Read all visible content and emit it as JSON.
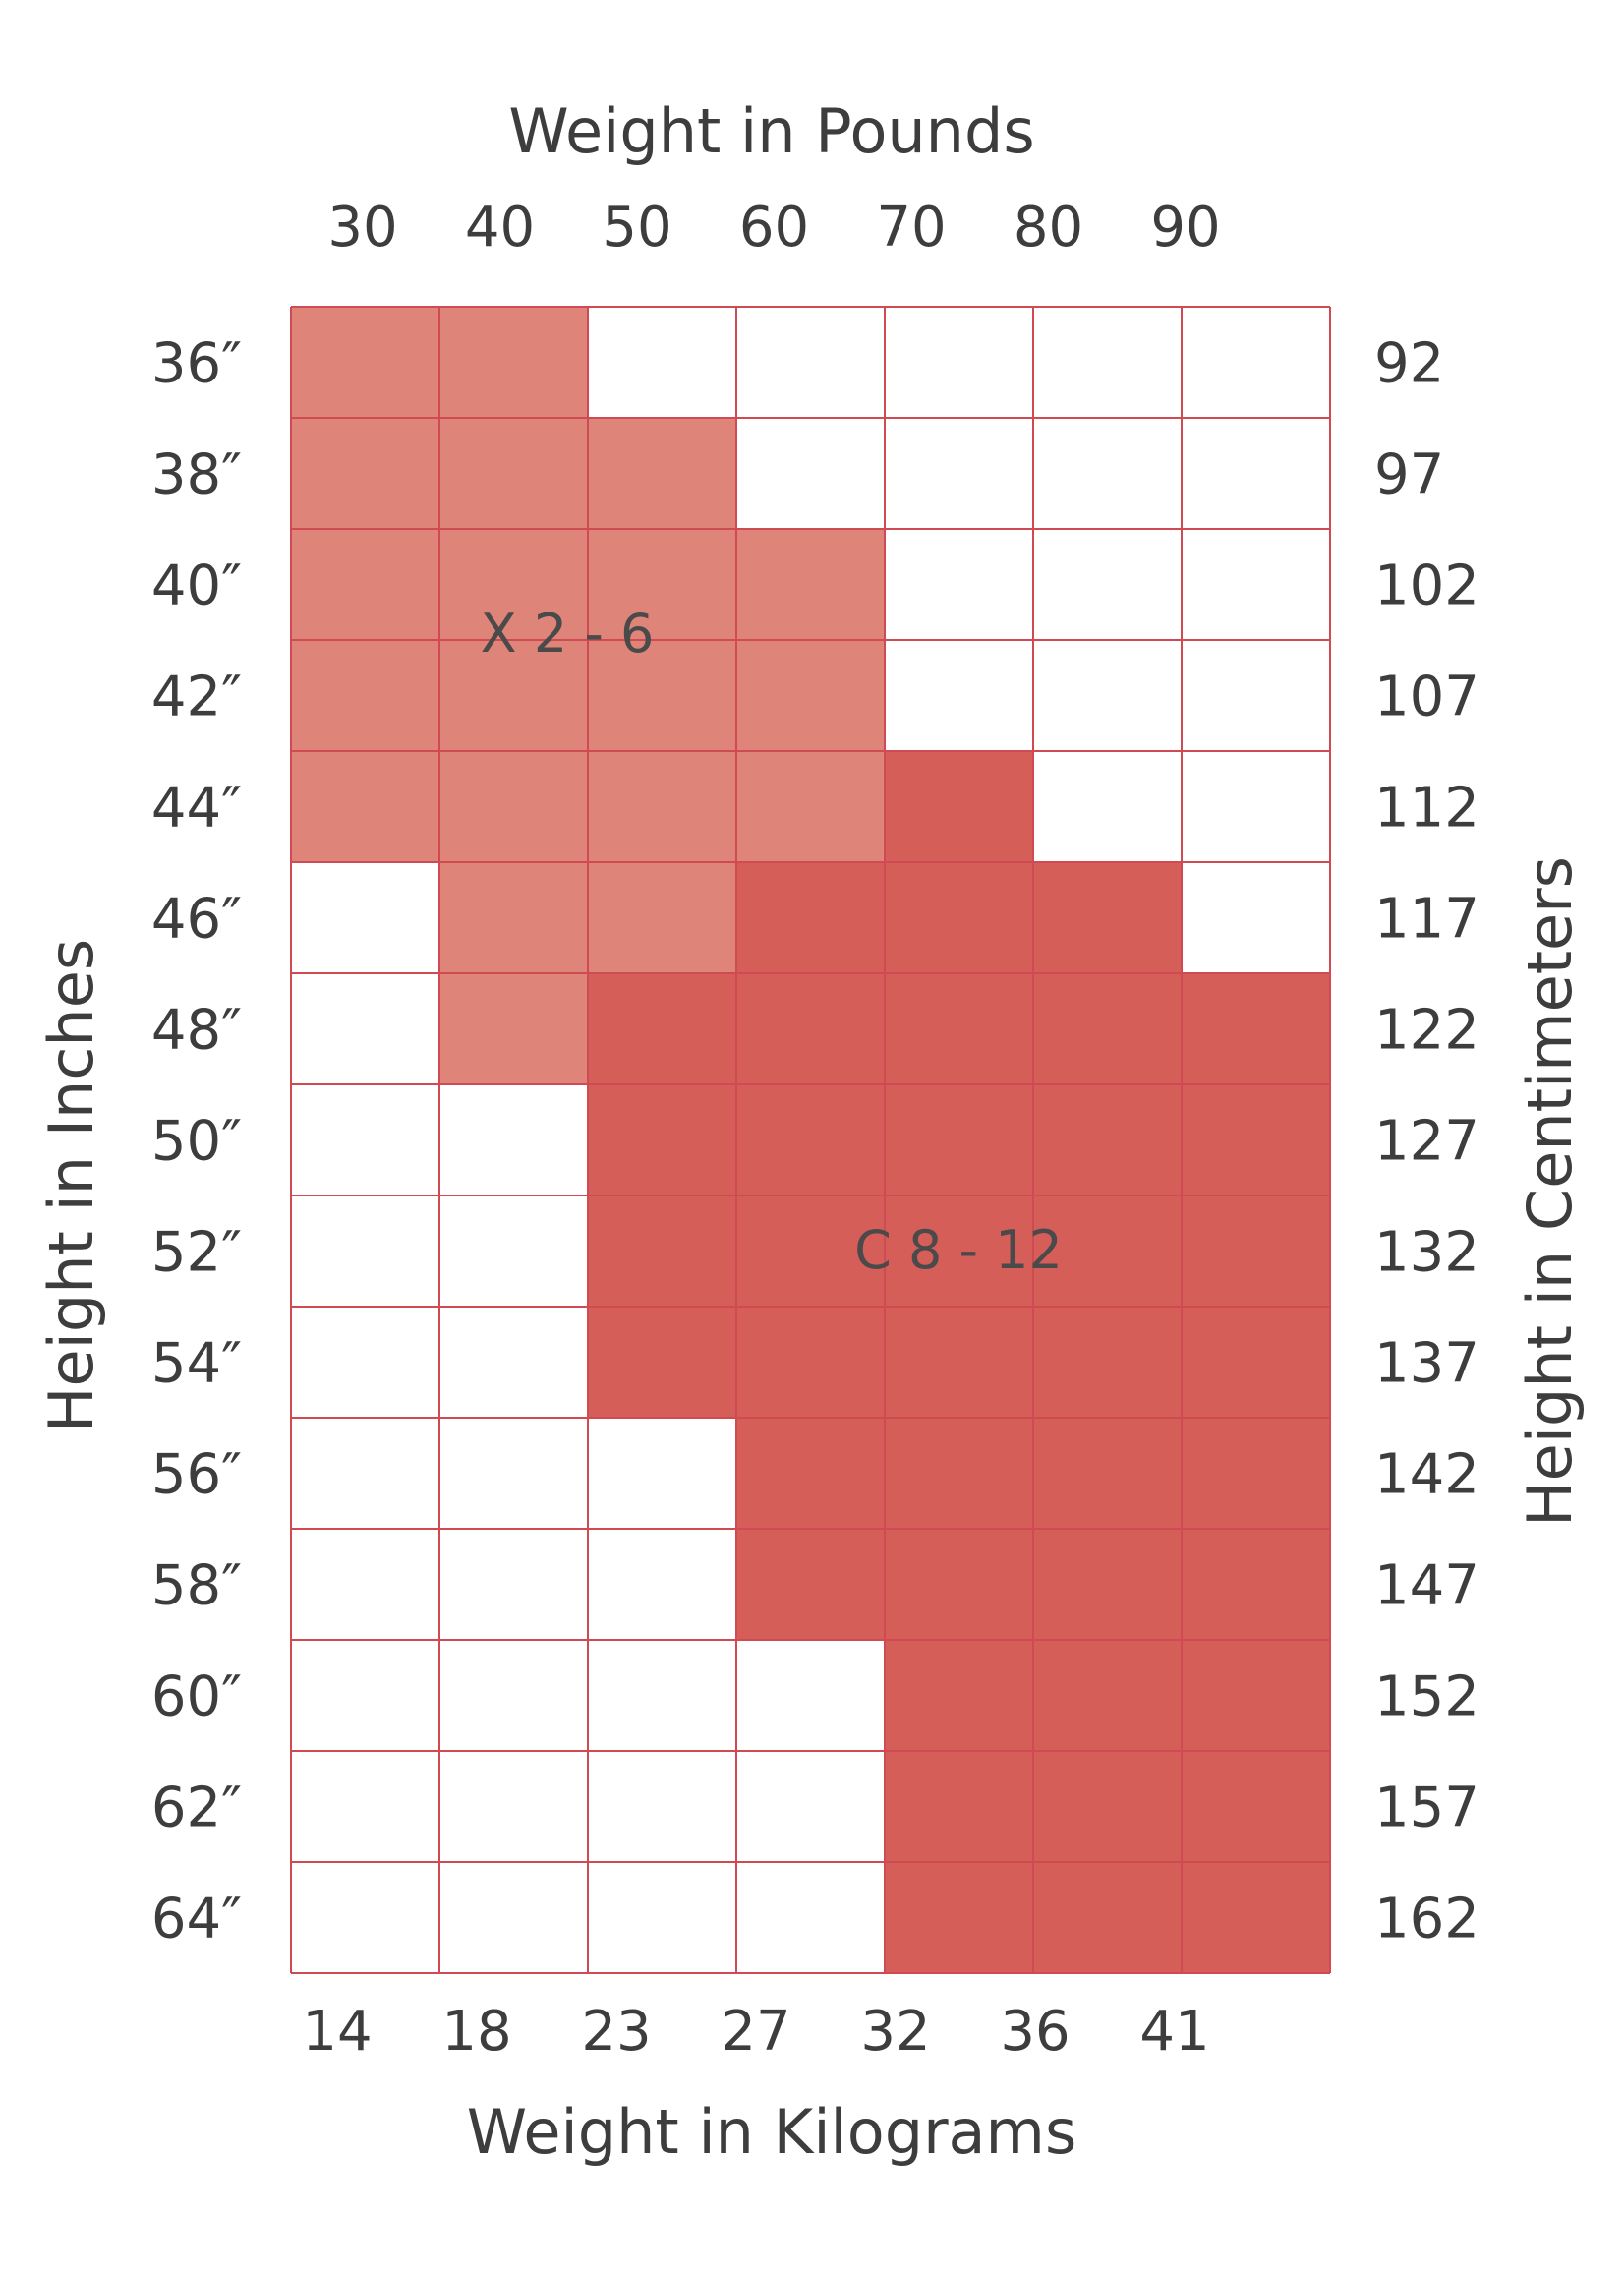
{
  "chart_data": {
    "type": "heatmap",
    "title": "",
    "top_axis_title": "Weight in Pounds",
    "bottom_axis_title": "Weight in Kilograms",
    "left_axis_title": "Height in Inches",
    "right_axis_title": "Height in Centimeters",
    "pounds_ticks": [
      "30",
      "40",
      "50",
      "60",
      "70",
      "80",
      "90"
    ],
    "kilogram_ticks": [
      "14",
      "18",
      "23",
      "27",
      "32",
      "36",
      "41"
    ],
    "inch_ticks": [
      "36″",
      "38″",
      "40″",
      "42″",
      "44″",
      "46″",
      "48″",
      "50″",
      "52″",
      "54″",
      "56″",
      "58″",
      "60″",
      "62″",
      "64″"
    ],
    "centimeter_ticks": [
      "92",
      "97",
      "102",
      "107",
      "112",
      "117",
      "122",
      "127",
      "132",
      "137",
      "142",
      "147",
      "152",
      "157",
      "162"
    ],
    "regions": [
      {
        "label": "X 2 - 6",
        "code": "X",
        "color": "#df8478"
      },
      {
        "label": "C 8 - 12",
        "code": "C",
        "color": "#d65e59"
      }
    ],
    "grid_line_color": "#cf4a52",
    "empty_color": "#ffffff",
    "cells": [
      [
        "X",
        "X",
        "",
        "",
        "",
        "",
        ""
      ],
      [
        "X",
        "X",
        "X",
        "",
        "",
        "",
        ""
      ],
      [
        "X",
        "X",
        "X",
        "X",
        "",
        "",
        ""
      ],
      [
        "X",
        "X",
        "X",
        "X",
        "",
        "",
        ""
      ],
      [
        "X",
        "X",
        "X",
        "X",
        "C",
        "",
        ""
      ],
      [
        "",
        "X",
        "X",
        "C",
        "C",
        "C",
        ""
      ],
      [
        "",
        "X",
        "C",
        "C",
        "C",
        "C",
        "C"
      ],
      [
        "",
        "",
        "C",
        "C",
        "C",
        "C",
        "C"
      ],
      [
        "",
        "",
        "C",
        "C",
        "C",
        "C",
        "C"
      ],
      [
        "",
        "",
        "C",
        "C",
        "C",
        "C",
        "C"
      ],
      [
        "",
        "",
        "",
        "C",
        "C",
        "C",
        "C"
      ],
      [
        "",
        "",
        "",
        "C",
        "C",
        "C",
        "C"
      ],
      [
        "",
        "",
        "",
        "",
        "C",
        "C",
        "C"
      ],
      [
        "",
        "",
        "",
        "",
        "C",
        "C",
        "C"
      ],
      [
        "",
        "",
        "",
        "",
        "C",
        "C",
        "C"
      ]
    ]
  }
}
